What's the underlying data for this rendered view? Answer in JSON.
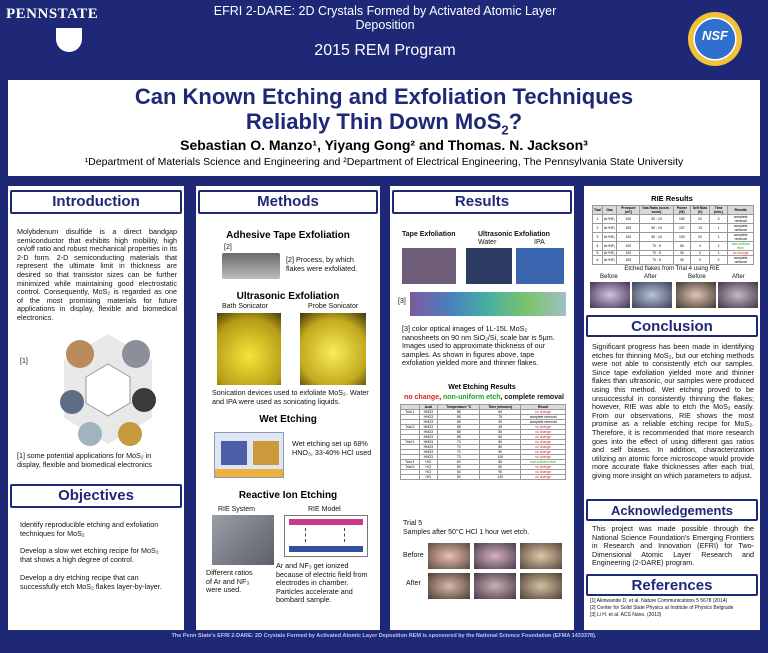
{
  "header": {
    "psu": "PENNSTATE",
    "efri_line1": "EFRI 2-DARE: 2D Crystals Formed by Activated Atomic Layer",
    "efri_line2": "Deposition",
    "program": "2015 REM Program",
    "nsf": "NSF"
  },
  "title": {
    "line1": "Can Known Etching and Exfoliation Techniques",
    "line2": "Reliably Thin Down MoS",
    "line2_sub": "2",
    "line2_end": "?",
    "authors": "Sebastian O. Manzo¹, Yiyang Gong² and Thomas. N. Jackson³",
    "affil": "¹Department of Materials Science and Engineering and ²Department of Electrical Engineering, The Pennsylvania State University"
  },
  "intro": {
    "heading": "Introduction",
    "text": "Molybdenum disulfide is a direct bandgap semiconductor that exhibits high mobility, high on/off ratio and robust mechanical properties in its 2-D form. 2-D semiconducting materials that represent the ultimate limit in thickness are desired so that transistor sizes can be further minimized while maintaining good electrostatic control. Consequently, MoS₂ is regarded as one of the most promising materials for future applications in display, flexible and biomedical electronics.",
    "ref": "[1]",
    "caption": "[1] some potential applications for MoS₂ in display, flexible and biomedical electronics"
  },
  "objectives": {
    "heading": "Objectives",
    "items": [
      "Identify reproducible etching and exfoliation techniques for MoS₂",
      "Develop a slow wet etching recipe for MoS₂ that shows a high degree of control.",
      "Develop a dry etching recipe that can successfully etch MoS₂ flakes layer-by-layer."
    ]
  },
  "methods": {
    "heading": "Methods",
    "tape_title": "Adhesive Tape Exfoliation",
    "tape_ref": "[2]",
    "tape_caption": "[2] Process, by which flakes were exfoliated.",
    "ultra_title": "Ultrasonic Exfoliation",
    "bath": "Bath Sonicator",
    "probe": "Probe Sonicator",
    "ultra_caption": "Sonication devices used to exfoliate MoS₂. Water and IPA were used as sonicating liquids.",
    "wet_title": "Wet Etching",
    "wet_caption": "Wet etching set up 68% HNO₃, 33-40% HCl used",
    "rie_title": "Reactive Ion Etching",
    "rie_system": "RIE System",
    "rie_model": "RIE Model",
    "rie_left": "Different ratios of Ar and NF₃ were used.",
    "rie_right": "Ar and NF₃ get ionized because of electric field from electrodes in chamber. Particles accelerate and bombard sample."
  },
  "results": {
    "heading": "Results",
    "tape": "Tape Exfoliation",
    "ultra": "Ultrasonic Exfoliation",
    "water": "Water",
    "ipa": "IPA",
    "ref": "[3]",
    "caption": "[3] color optical images of 1L-15L MoS₂ nanosheets on 90 nm SiO₂/Si, scale bar is 5μm. Images used to approximate thickness of our samples. As shown in figures above, tape exfoliation yielded more and thinner flakes.",
    "wet_title": "Wet Etching Results",
    "legend_nc": "no change",
    "legend_nu": "non-uniform etch",
    "legend_cr": "complete removal",
    "trial5": "Trial 5",
    "trial5_desc": "Samples after 50°C HCl 1 hour wet etch.",
    "before": "Before",
    "after": "After"
  },
  "wet_table": {
    "headers": [
      "",
      "Acid",
      "Temperature °C",
      "Time (minutes)",
      "Result"
    ],
    "rows": [
      [
        "Trial 1",
        "HNO3",
        "85",
        "60",
        "no change"
      ],
      [
        "",
        "HNO3",
        "85",
        "75",
        "complete removal"
      ],
      [
        "",
        "HNO3",
        "85",
        "90",
        "complete removal"
      ],
      [
        "Trial 2",
        "HNO3",
        "85",
        "45",
        "no change"
      ],
      [
        "",
        "HNO3",
        "85",
        "50",
        "no change"
      ],
      [
        "",
        "HNO3",
        "85",
        "60",
        "no change"
      ],
      [
        "Trial 3",
        "HNO3",
        "70",
        "60",
        "no change"
      ],
      [
        "",
        "HNO3",
        "70",
        "80",
        "no change"
      ],
      [
        "",
        "HNO3",
        "70",
        "90",
        "no change"
      ],
      [
        "",
        "HNO3",
        "70",
        "100",
        "no change"
      ],
      [
        "Trial 4",
        "HCl",
        "60",
        "60",
        "non-uniform etch"
      ],
      [
        "Trial 5",
        "HCl",
        "50",
        "60",
        "no change"
      ],
      [
        "",
        "HCl",
        "50",
        "90",
        "no change"
      ],
      [
        "",
        "HCl",
        "50",
        "120",
        "no change"
      ]
    ]
  },
  "rie": {
    "title": "RIE Results",
    "headers": [
      "Trial",
      "Gas",
      "Pressure (mT)",
      "Gas Ratio (sccm : sccm)",
      "Power (W)",
      "Self Bias (V)",
      "Time (min.)",
      "Results"
    ],
    "rows": [
      [
        "1",
        "Ar+NF₃",
        "100",
        "50 : 10",
        "150",
        "20",
        "3",
        "complete removal"
      ],
      [
        "2",
        "Ar+NF₃",
        "100",
        "50 : 10",
        "157",
        "13",
        "1",
        "complete removal"
      ],
      [
        "3",
        "Ar+NF₃",
        "100",
        "50 : 10",
        "100",
        "20",
        "1",
        "complete removal"
      ],
      [
        "4",
        "Ar+NF₃",
        "100",
        "70 : 5",
        "50",
        "4",
        "1",
        "non-uniform etch"
      ],
      [
        "5",
        "Ar+NF₃",
        "100",
        "70 : 5",
        "30",
        "0",
        "1",
        "no change"
      ],
      [
        "6",
        "Ar+NF₃",
        "100",
        "70 : 5",
        "30",
        "0",
        "2",
        "complete removal"
      ]
    ],
    "caption": "Etched flakes from Trial 4 using RIE",
    "before1": "Before",
    "after1": "After",
    "before2": "Before",
    "after2": "After"
  },
  "conclusion": {
    "heading": "Conclusion",
    "text": "Significant progress has been made in identifying etches for thinning MoS₂, but our etching methods were not able to consistently etch our samples. Since tape exfoliation yielded more and thinner flakes than ultrasonic, our samples were produced using this method. Wet etching proved to be unsuccessful in consistently thinning the flakes; however, RIE was able to etch the MoS₂ easily. From our observations, RIE shows the most promise as a reliable etching recipe for MoS₂. Therefore, it is recommended that more research goes into the effect of using different gas ratios and self biases. In addition, characterization utilizing an atomic force microscope would provide more accurate flake thicknesses after each trial, giving more insight on which parameters to adjust."
  },
  "ack": {
    "heading": "Acknowledgements",
    "text": "This project was made possible through the National Science Foundation's Emerging Frontiers in Research and Innovation (EFRI) for Two-Dimensional Atomic Layer Research and Engineering (2-DARE) program."
  },
  "refs": {
    "heading": "References",
    "items": [
      "[1] Akinwande D. et al. Nature Communications 5 5678 (2014)",
      "[2] Center for Solid State Physics at Institute of Physics Belgrade",
      "[3] Li H. et al. ACS Nano. (2013)"
    ]
  },
  "footer": "The Penn State's EFRI 2-DARE: 2D Crystals Formed by Activated Atomic Layer Deposition REM is sponsored by the National Science Foundation (EFMA 1433378).",
  "colors": {
    "navy": "#1e2877",
    "no_change": "#e02020",
    "non_uniform": "#19a319",
    "complete": "#000000"
  }
}
